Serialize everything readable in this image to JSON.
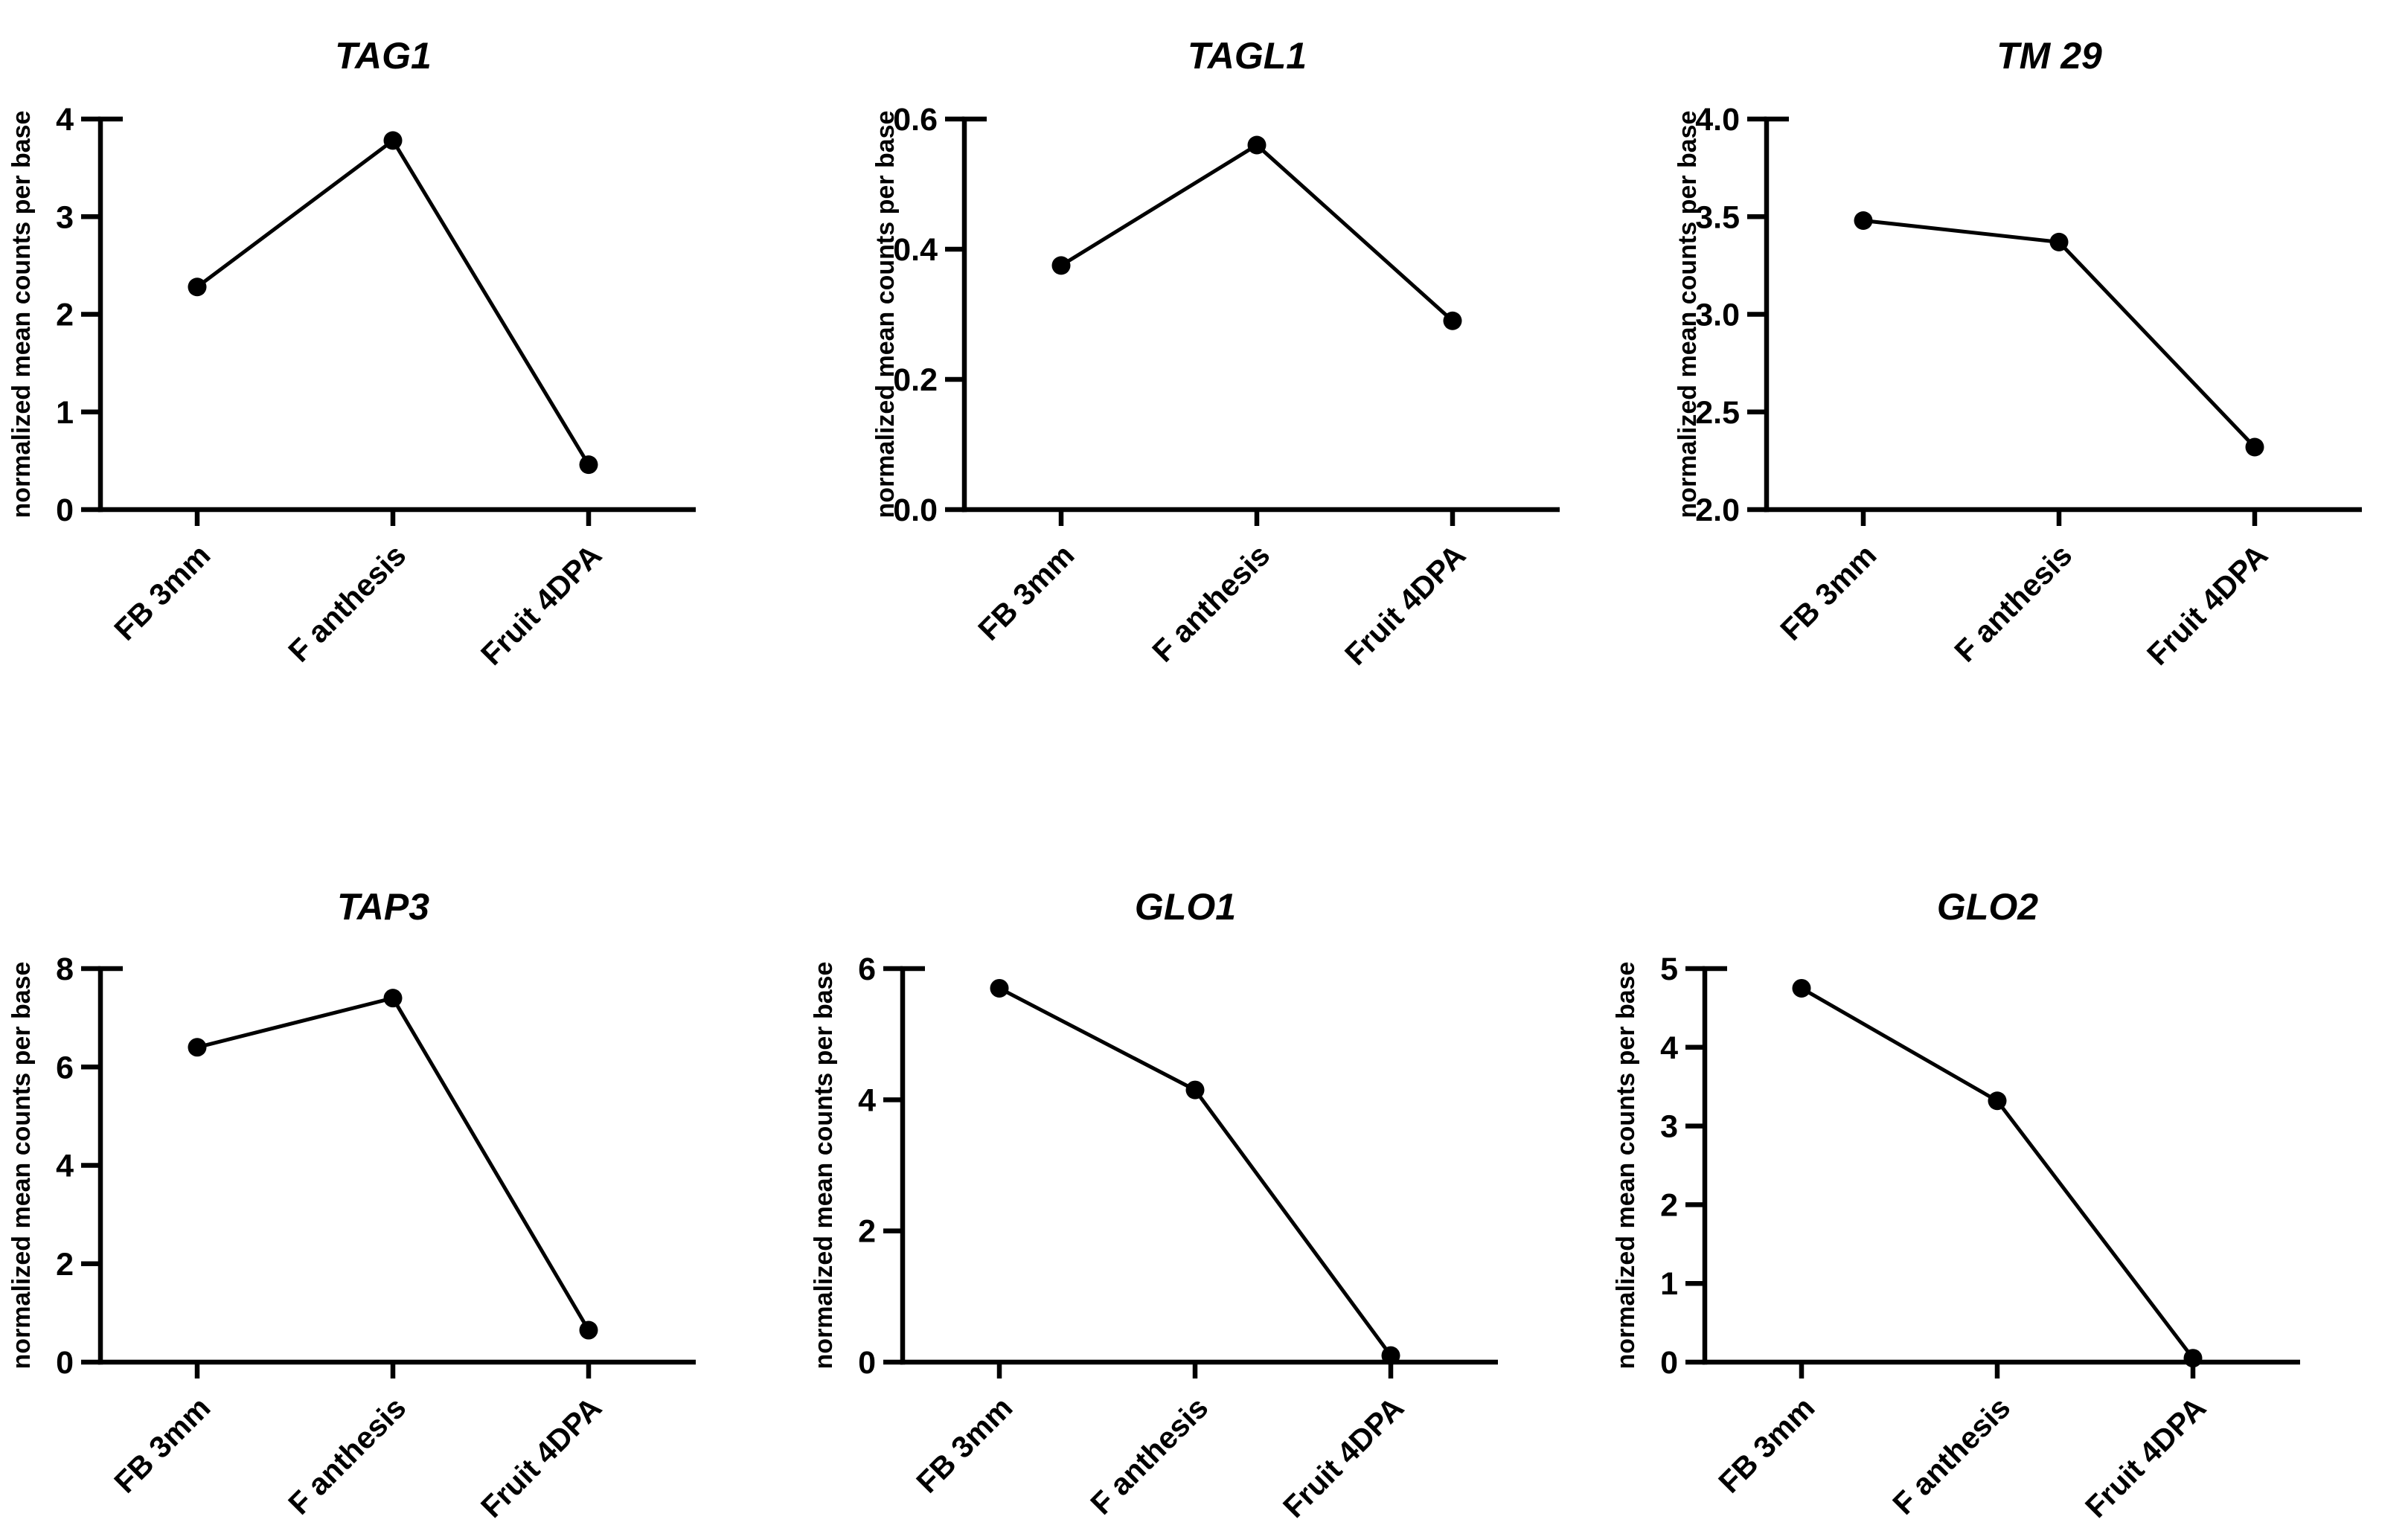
{
  "page": {
    "background_color": "#ffffff",
    "foreground_color": "#000000",
    "description": "Panel of six line charts of gene expression across flower/fruit developmental stages"
  },
  "chart_data": [
    {
      "type": "line",
      "title": "TAG1",
      "ylabel": "normalized mean counts per base",
      "categories": [
        "FB 3mm",
        "F anthesis",
        "Fruit 4DPA"
      ],
      "values": [
        2.28,
        3.78,
        0.46
      ],
      "ylim": [
        0,
        4
      ],
      "yticks": [
        0,
        1,
        2,
        3,
        4
      ],
      "ytick_labels": [
        "0",
        "1",
        "2",
        "3",
        "4"
      ],
      "marker": "filled-circle",
      "line_color": "#000000",
      "grid": "off",
      "legend": "none"
    },
    {
      "type": "line",
      "title": "TAGL1",
      "ylabel": "normalized mean counts per base",
      "categories": [
        "FB 3mm",
        "F anthesis",
        "Fruit 4DPA"
      ],
      "values": [
        0.375,
        0.56,
        0.29
      ],
      "ylim": [
        0,
        0.6
      ],
      "yticks": [
        0,
        0.2,
        0.4,
        0.6
      ],
      "ytick_labels": [
        "0.0",
        "0.2",
        "0.4",
        "0.6"
      ],
      "marker": "filled-circle",
      "line_color": "#000000",
      "grid": "off",
      "legend": "none"
    },
    {
      "type": "line",
      "title": "TM 29",
      "ylabel": "normalized mean counts per base",
      "categories": [
        "FB 3mm",
        "F anthesis",
        "Fruit 4DPA"
      ],
      "values": [
        3.48,
        3.37,
        2.32
      ],
      "ylim": [
        2,
        4
      ],
      "yticks": [
        2,
        2.5,
        3,
        3.5,
        4
      ],
      "ytick_labels": [
        "2.0",
        "2.5",
        "3.0",
        "3.5",
        "4.0"
      ],
      "marker": "filled-circle",
      "line_color": "#000000",
      "grid": "off",
      "legend": "none"
    },
    {
      "type": "line",
      "title": "TAP3",
      "ylabel": "normalized mean counts per base",
      "categories": [
        "FB 3mm",
        "F anthesis",
        "Fruit 4DPA"
      ],
      "values": [
        6.4,
        7.4,
        0.65
      ],
      "ylim": [
        0,
        8
      ],
      "yticks": [
        0,
        2,
        4,
        6,
        8
      ],
      "ytick_labels": [
        "0",
        "2",
        "4",
        "6",
        "8"
      ],
      "marker": "filled-circle",
      "line_color": "#000000",
      "grid": "off",
      "legend": "none"
    },
    {
      "type": "line",
      "title": "GLO1",
      "ylabel": "normalized mean counts per base",
      "categories": [
        "FB 3mm",
        "F anthesis",
        "Fruit 4DPA"
      ],
      "values": [
        5.7,
        4.15,
        0.1
      ],
      "ylim": [
        0,
        6
      ],
      "yticks": [
        0,
        2,
        4,
        6
      ],
      "ytick_labels": [
        "0",
        "2",
        "4",
        "6"
      ],
      "marker": "filled-circle",
      "line_color": "#000000",
      "grid": "off",
      "legend": "none"
    },
    {
      "type": "line",
      "title": "GLO2",
      "ylabel": "normalized mean counts per base",
      "categories": [
        "FB 3mm",
        "F anthesis",
        "Fruit 4DPA"
      ],
      "values": [
        4.75,
        3.32,
        0.05
      ],
      "ylim": [
        0,
        5
      ],
      "yticks": [
        0,
        1,
        2,
        3,
        4,
        5
      ],
      "ytick_labels": [
        "0",
        "1",
        "2",
        "3",
        "4",
        "5"
      ],
      "marker": "filled-circle",
      "line_color": "#000000",
      "grid": "off",
      "legend": "none"
    }
  ]
}
